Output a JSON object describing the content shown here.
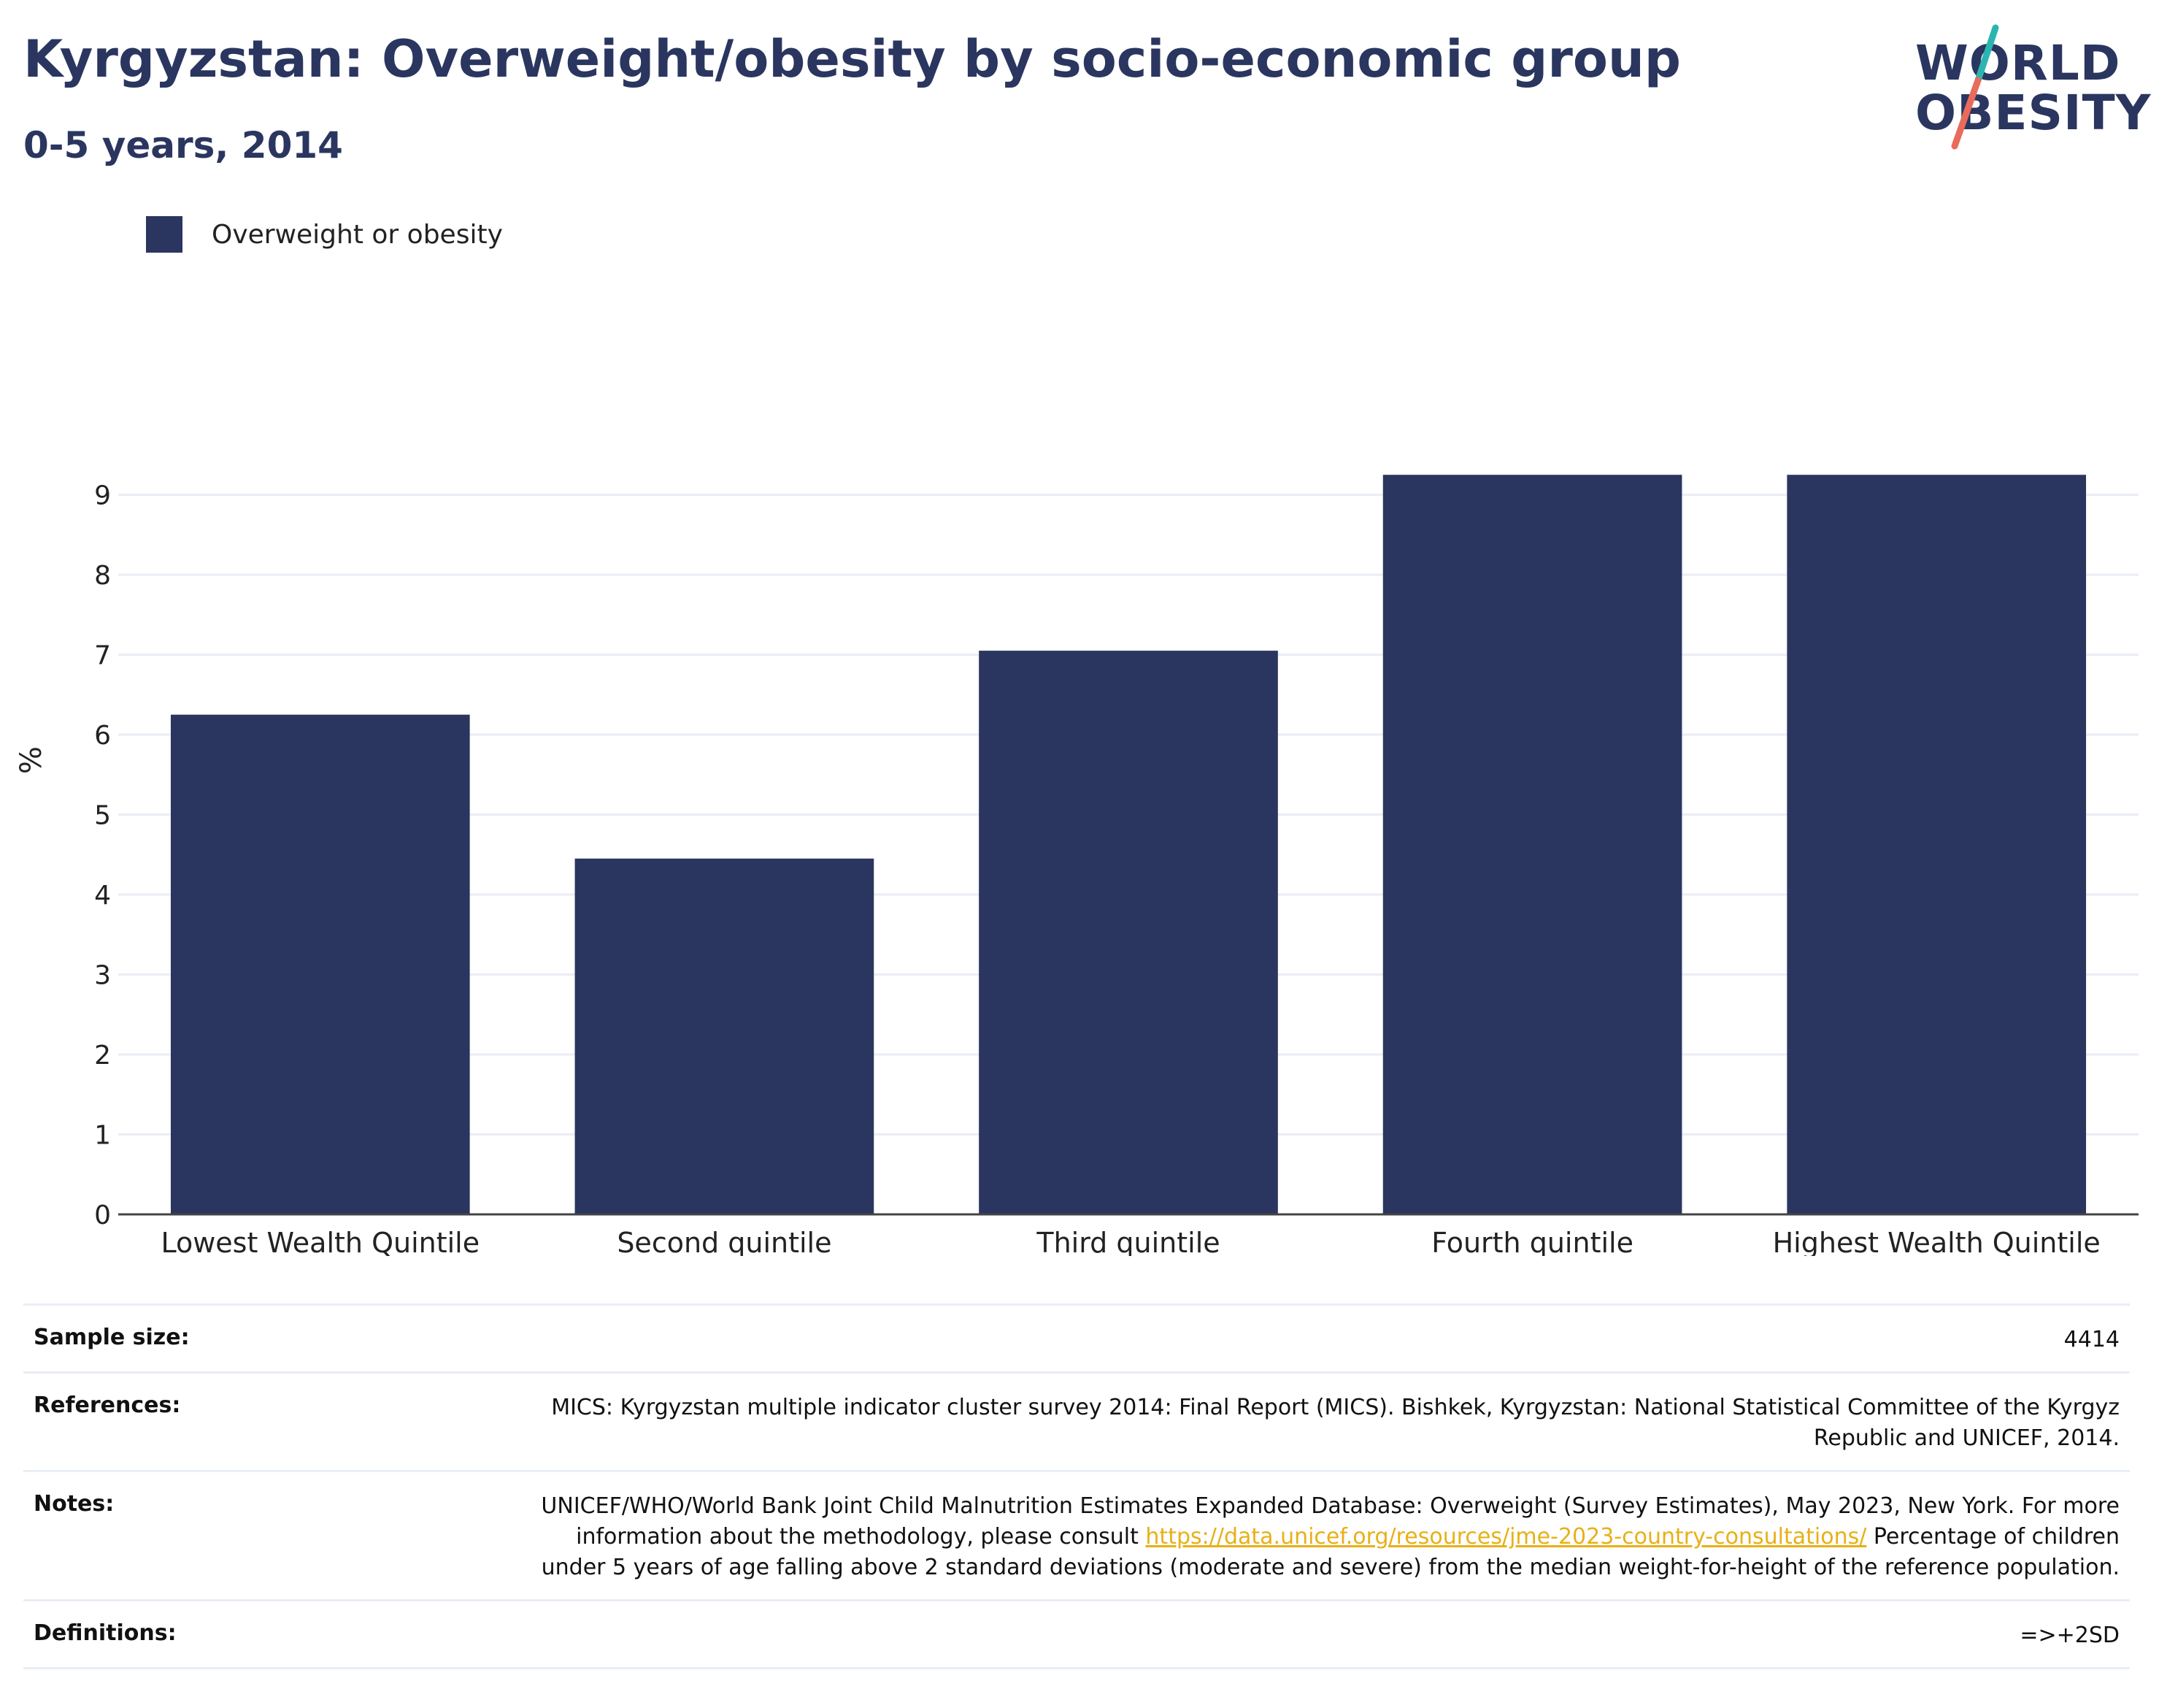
{
  "header": {
    "title": "Kyrgyzstan: Overweight/obesity by socio-economic group",
    "subtitle": "0-5 years, 2014"
  },
  "logo": {
    "line1": "WORLD",
    "line2": "OBESITY",
    "teal": "#2bb5b0",
    "coral": "#e96b5b"
  },
  "legend": {
    "label": "Overweight or obesity",
    "color": "#2a365f"
  },
  "chart_data": {
    "type": "bar",
    "categories": [
      "Lowest Wealth Quintile",
      "Second quintile",
      "Third quintile",
      "Fourth quintile",
      "Highest Wealth Quintile"
    ],
    "series": [
      {
        "name": "Overweight or obesity",
        "values": [
          6.25,
          4.45,
          7.05,
          9.25,
          9.25
        ],
        "color": "#2a365f"
      }
    ],
    "ylabel": "%",
    "xlabel": "",
    "ylim": [
      0,
      9.8
    ],
    "yticks": [
      0,
      1,
      2,
      3,
      4,
      5,
      6,
      7,
      8,
      9
    ],
    "grid": true,
    "legend_position": "top-left"
  },
  "info": {
    "sample_size_label": "Sample size:",
    "sample_size_value": "4414",
    "references_label": "References:",
    "references_value": "MICS: Kyrgyzstan multiple indicator cluster survey 2014: Final Report (MICS). Bishkek, Kyrgyzstan: National Statistical Committee of the Kyrgyz Republic and UNICEF, 2014.",
    "notes_label": "Notes:",
    "notes_text_1": "UNICEF/WHO/World Bank Joint Child Malnutrition Estimates Expanded Database: Overweight (Survey Estimates), May 2023, New York. For more information about the methodology, please consult",
    "notes_link": "https://data.unicef.org/resources/jme-2023-country-consultations/",
    "notes_text_2": "Percentage of children under 5 years of age falling above 2 standard deviations (moderate and severe) from the median weight-for-height of the reference population.",
    "definitions_label": "Definitions:",
    "definitions_value": "=>+2SD"
  }
}
